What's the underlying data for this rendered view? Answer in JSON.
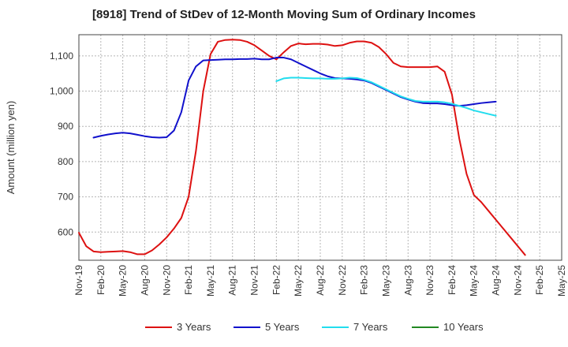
{
  "chart_data": {
    "type": "line",
    "title": "[8918]  Trend of StDev of 12-Month Moving Sum of Ordinary Incomes",
    "xlabel": "",
    "ylabel": "Amount (million yen)",
    "ylim": [
      520,
      1160
    ],
    "yticks": [
      600,
      700,
      800,
      900,
      1000,
      1100
    ],
    "ytick_labels": [
      "600",
      "700",
      "800",
      "900",
      "1,000",
      "1,100"
    ],
    "x_start": "Nov-19",
    "x_end": "May-25",
    "xtick_labels": [
      "Nov-19",
      "Feb-20",
      "May-20",
      "Aug-20",
      "Nov-20",
      "Feb-21",
      "May-21",
      "Aug-21",
      "Nov-21",
      "Feb-22",
      "May-22",
      "Aug-22",
      "Nov-22",
      "Feb-23",
      "May-23",
      "Aug-23",
      "Nov-23",
      "Feb-24",
      "May-24",
      "Aug-24",
      "Nov-24",
      "Feb-25",
      "May-25"
    ],
    "grid": true,
    "legend_position": "bottom",
    "series": [
      {
        "name": "3 Years",
        "color": "#dd1111",
        "start": "Nov-19",
        "values": [
          598,
          560,
          545,
          543,
          544,
          545,
          546,
          543,
          537,
          537,
          548,
          565,
          585,
          610,
          640,
          700,
          830,
          1000,
          1105,
          1140,
          1145,
          1146,
          1145,
          1140,
          1130,
          1115,
          1100,
          1090,
          1110,
          1128,
          1135,
          1133,
          1134,
          1134,
          1132,
          1128,
          1130,
          1137,
          1141,
          1141,
          1137,
          1125,
          1105,
          1080,
          1070,
          1068,
          1068,
          1068,
          1068,
          1070,
          1055,
          990,
          865,
          765,
          705,
          685,
          660,
          635,
          610,
          585,
          560,
          535
        ]
      },
      {
        "name": "5 Years",
        "color": "#1111cc",
        "start": "Nov-19",
        "values": [
          null,
          null,
          868,
          873,
          877,
          880,
          882,
          880,
          876,
          872,
          869,
          868,
          869,
          888,
          940,
          1030,
          1070,
          1087,
          1088,
          1089,
          1090,
          1090,
          1091,
          1091,
          1092,
          1090,
          1090,
          1095,
          1095,
          1090,
          1080,
          1070,
          1060,
          1050,
          1042,
          1037,
          1036,
          1035,
          1033,
          1030,
          1023,
          1013,
          1003,
          993,
          983,
          976,
          970,
          966,
          965,
          965,
          963,
          960,
          958,
          960,
          963,
          966,
          968,
          970
        ]
      },
      {
        "name": "7 Years",
        "color": "#22ddee",
        "start": "Nov-19",
        "values": [
          null,
          null,
          null,
          null,
          null,
          null,
          null,
          null,
          null,
          null,
          null,
          null,
          null,
          null,
          null,
          null,
          null,
          null,
          null,
          null,
          null,
          null,
          null,
          null,
          null,
          null,
          null,
          1028,
          1036,
          1038,
          1038,
          1037,
          1036,
          1036,
          1035,
          1035,
          1036,
          1038,
          1037,
          1032,
          1025,
          1015,
          1005,
          995,
          985,
          978,
          972,
          970,
          970,
          970,
          968,
          964,
          958,
          952,
          945,
          940,
          935,
          930
        ]
      },
      {
        "name": "10 Years",
        "color": "#228822",
        "start": "Nov-19",
        "values": []
      }
    ]
  }
}
